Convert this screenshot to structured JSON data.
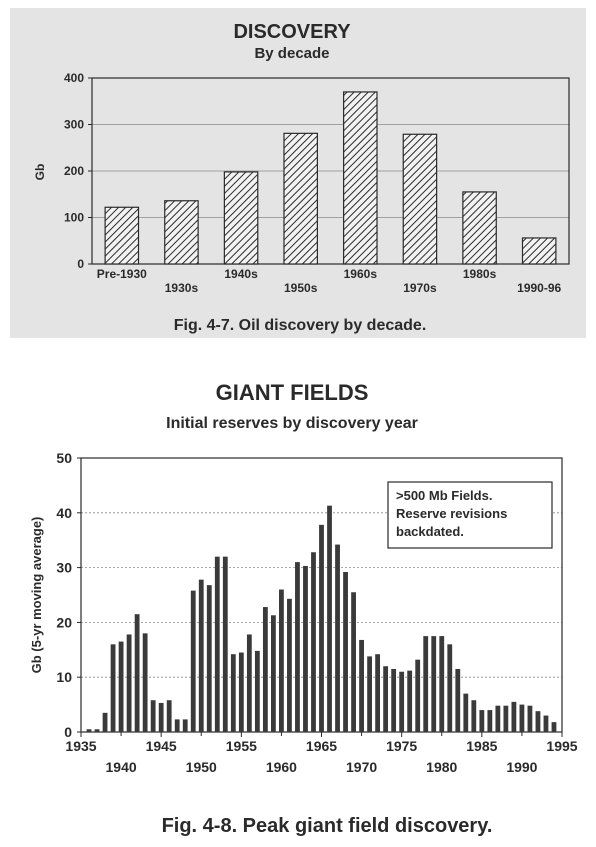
{
  "colors": {
    "scan_bg": "#e4e4e4",
    "ink": "#2a2a2a",
    "bar": "#3a3a3a",
    "grid": "#8a8a8a"
  },
  "chart_data": [
    {
      "type": "bar",
      "title": "DISCOVERY",
      "subtitle": "By decade",
      "caption": "Fig. 4-7. Oil discovery by decade.",
      "xlabel": "",
      "ylabel": "Gb",
      "ylim": [
        0,
        400
      ],
      "yticks": [
        "0",
        "100",
        "200",
        "300",
        "400"
      ],
      "categories": [
        "Pre-1930",
        "1930s",
        "1940s",
        "1950s",
        "1960s",
        "1970s",
        "1980s",
        "1990-96"
      ],
      "values": [
        122,
        136,
        198,
        281,
        370,
        279,
        155,
        56
      ],
      "grid": true,
      "bar_fill": "hatched"
    },
    {
      "type": "bar",
      "title": "GIANT FIELDS",
      "subtitle": "Initial reserves by discovery year",
      "caption": "Fig. 4-8. Peak  giant field discovery.",
      "xlabel": "",
      "ylabel": "Gb (5-yr moving average)",
      "ylim": [
        0,
        50
      ],
      "xlim": [
        1935,
        1995
      ],
      "yticks": [
        "0",
        "10",
        "20",
        "30",
        "40",
        "50"
      ],
      "xticks_top": [
        "1935",
        "1945",
        "1955",
        "1965",
        "1975",
        "1985",
        "1995"
      ],
      "xticks_bottom": [
        "1940",
        "1950",
        "1960",
        "1970",
        "1980",
        "1990"
      ],
      "annotation": [
        ">500 Mb Fields.",
        "Reserve revisions",
        "backdated."
      ],
      "grid": true,
      "x": [
        1936,
        1937,
        1938,
        1939,
        1940,
        1941,
        1942,
        1943,
        1944,
        1945,
        1946,
        1947,
        1948,
        1949,
        1950,
        1951,
        1952,
        1953,
        1954,
        1955,
        1956,
        1957,
        1958,
        1959,
        1960,
        1961,
        1962,
        1963,
        1964,
        1965,
        1966,
        1967,
        1968,
        1969,
        1970,
        1971,
        1972,
        1973,
        1974,
        1975,
        1976,
        1977,
        1978,
        1979,
        1980,
        1981,
        1982,
        1983,
        1984,
        1985,
        1986,
        1987,
        1988,
        1989,
        1990,
        1991,
        1992,
        1993,
        1994
      ],
      "values": [
        0.5,
        0.5,
        3.5,
        16,
        16.5,
        17.8,
        21.5,
        18,
        5.8,
        5.3,
        5.8,
        2.3,
        2.3,
        25.8,
        27.8,
        26.8,
        32,
        32,
        14.2,
        14.5,
        17.8,
        14.8,
        22.8,
        21.3,
        26,
        24.3,
        31,
        30.3,
        32.8,
        37.8,
        41.3,
        34.2,
        29.2,
        25.5,
        16.8,
        13.8,
        14.2,
        12,
        11.5,
        11,
        11.2,
        13.2,
        17.5,
        17.5,
        17.5,
        16,
        11.5,
        7,
        5.8,
        4,
        4,
        4.8,
        4.8,
        5.5,
        5,
        4.8,
        3.8,
        3,
        1.8
      ]
    }
  ]
}
